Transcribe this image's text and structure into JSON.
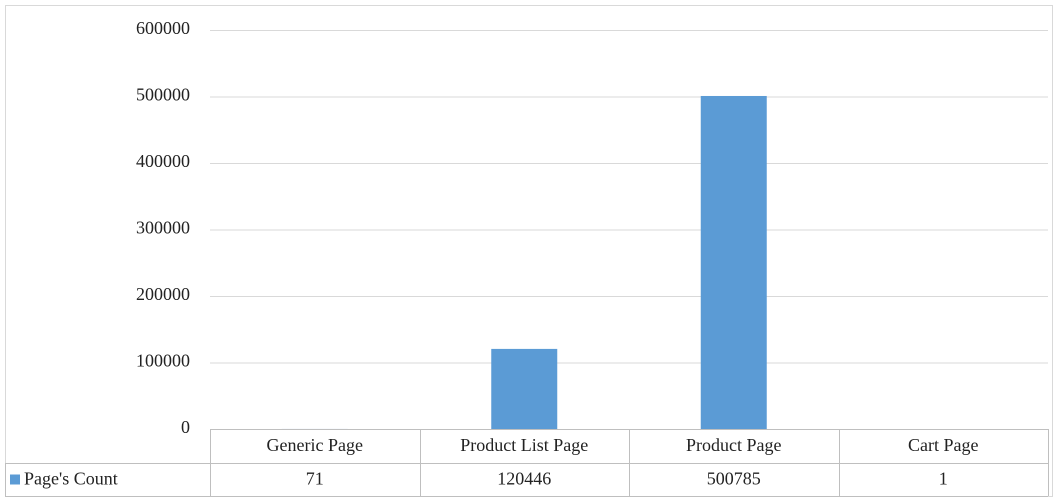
{
  "chart_data": {
    "type": "bar",
    "categories": [
      "Generic Page",
      "Product List Page",
      "Product Page",
      "Cart Page"
    ],
    "series": [
      {
        "name": "Page's Count",
        "color": "#5b9bd5",
        "values": [
          71,
          120446,
          500785,
          1
        ]
      }
    ],
    "ylim": [
      0,
      600000
    ],
    "yticks": [
      0,
      100000,
      200000,
      300000,
      400000,
      500000,
      600000
    ],
    "grid": true
  }
}
